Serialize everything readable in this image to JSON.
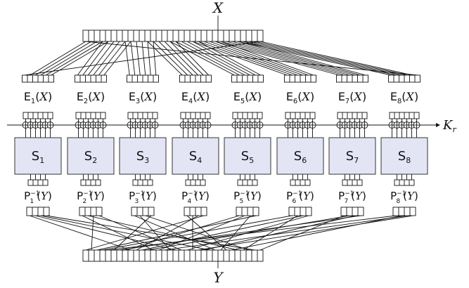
{
  "diagram": {
    "input_label": "X",
    "output_label": "Y",
    "key_label": "K",
    "key_subscript": "r",
    "box_count": 8,
    "expansion_label": {
      "prefix": "E",
      "arg": "X"
    },
    "sbox_label": {
      "prefix": "S"
    },
    "inverse_perm_label": {
      "prefix": "P",
      "exponent": "−1",
      "arg": "Y"
    },
    "colors": {
      "sbox_fill": "#e3e5f5",
      "sbox_stroke": "#333333",
      "line": "#111111"
    }
  }
}
